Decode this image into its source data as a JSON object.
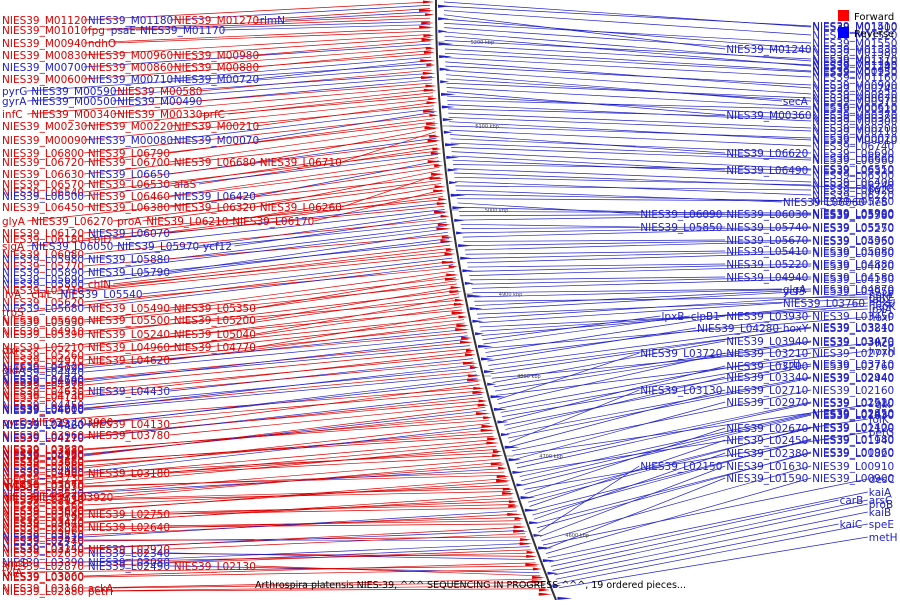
{
  "caption": "Arthrospira platensis NIES-39, ^^^ SEQUENCING IN PROGRESS ^^^, 19 ordered pieces...",
  "legend": [
    {
      "label": "Forward",
      "color": "#ff0000"
    },
    {
      "label": "Reverse",
      "color": "#0000ff"
    }
  ],
  "colors": {
    "forward": "#dd0000",
    "reverse": "#2222cc",
    "backbone": "#333333"
  },
  "ticks": [
    "5200 kbp",
    "5100 kbp",
    "5000 kbp",
    "4900 kbp",
    "4800 kbp",
    "4700 kbp",
    "4600 kbp"
  ],
  "left_labels": [
    [
      "NIES39_M01120",
      "f",
      20
    ],
    [
      "NIES39_M01180",
      "r",
      20
    ],
    [
      "NIES39_M01270",
      "f",
      20
    ],
    [
      "rlmN",
      "r",
      20
    ],
    [
      "NIES39_M01010",
      "f",
      30
    ],
    [
      "fpg",
      "f",
      30
    ],
    [
      "psaE",
      "r",
      30
    ],
    [
      "NIES39_M01170",
      "r",
      30
    ],
    [
      "NIES39_M00940",
      "f",
      43
    ],
    [
      "ndhO",
      "f",
      43
    ],
    [
      "NIES39_M00830",
      "f",
      55
    ],
    [
      "NIES39_M00960",
      "f",
      55
    ],
    [
      "NIES39_M00980",
      "f",
      55
    ],
    [
      "NIES39_M00700",
      "r",
      67
    ],
    [
      "NIES39_M00860",
      "f",
      67
    ],
    [
      "NIES39_M00880",
      "f",
      67
    ],
    [
      "NIES39_M00600",
      "f",
      79
    ],
    [
      "NIES39_M00710",
      "r",
      79
    ],
    [
      "NIES39_M00720",
      "r",
      79
    ],
    [
      "pyrG",
      "r",
      91
    ],
    [
      "NIES39_M00590",
      "r",
      91
    ],
    [
      "NIES39_M00580",
      "f",
      91
    ],
    [
      "gyrA",
      "r",
      101
    ],
    [
      "NIES39_M00500",
      "r",
      101
    ],
    [
      "NIES39_M00490",
      "r",
      101
    ],
    [
      "infC",
      "f",
      114
    ],
    [
      "NIES39_M00340",
      "f",
      114
    ],
    [
      "NIES39_M00330",
      "f",
      114
    ],
    [
      "prfC",
      "f",
      114
    ],
    [
      "NIES39_M00230",
      "f",
      126
    ],
    [
      "NIES39_M00220",
      "f",
      126
    ],
    [
      "NIES39_M00210",
      "f",
      126
    ],
    [
      "NIES39_M00090",
      "f",
      140
    ],
    [
      "NIES39_M00080",
      "r",
      140
    ],
    [
      "NIES39_M00070",
      "r",
      140
    ],
    [
      "NIES39_L06800",
      "f",
      153
    ],
    [
      "NIES39_L06790",
      "f",
      153
    ],
    [
      "NIES39_L06720",
      "f",
      162
    ],
    [
      "NIES39_L06700",
      "f",
      162
    ],
    [
      "NIES39_L06680",
      "f",
      162
    ],
    [
      "NIES39_L06710",
      "f",
      162
    ],
    [
      "NIES39_L06630",
      "f",
      174
    ],
    [
      "NIES39_L06650",
      "r",
      174
    ],
    [
      "NIES39_L06570",
      "f",
      184
    ],
    [
      "NIES39_L06530",
      "f",
      184
    ],
    [
      "alaS",
      "f",
      184
    ],
    [
      "NIES39_L06540",
      "f",
      192
    ],
    [
      "NIES39_L06500",
      "r",
      196
    ],
    [
      "NIES39_L06460",
      "f",
      196
    ],
    [
      "NIES39_L06420",
      "r",
      196
    ],
    [
      "NIES39_L06450",
      "f",
      207
    ],
    [
      "NIES39_L06380",
      "f",
      207
    ],
    [
      "NIES39_L06320",
      "f",
      207
    ],
    [
      "NIES39_L06260",
      "f",
      207
    ],
    [
      "glyA",
      "f",
      221
    ],
    [
      "NIES39_L06270",
      "f",
      221
    ],
    [
      "proA",
      "f",
      221
    ],
    [
      "NIES39_L06210",
      "f",
      221
    ],
    [
      "NIES39_L06170",
      "f",
      221
    ],
    [
      "NIES39_L06180",
      "f",
      239
    ],
    [
      "cbiD",
      "f",
      239
    ],
    [
      "NIES39_L06120",
      "f",
      233
    ],
    [
      "NIES39_L06070",
      "r",
      233
    ],
    [
      "sigA",
      "f",
      246
    ],
    [
      "NIES39_L06050",
      "r",
      246
    ],
    [
      "NIES39_L05970",
      "r",
      246
    ],
    [
      "ycf12",
      "r",
      246
    ],
    [
      "NIES39_L06080",
      "f",
      254
    ],
    [
      "NIES39_L05980",
      "r",
      259
    ],
    [
      "NIES39_L05880",
      "r",
      259
    ],
    [
      "NIES39_L05890",
      "r",
      272
    ],
    [
      "NIES39_L05790",
      "r",
      272
    ],
    [
      "NIES39_L05770",
      "f",
      266
    ],
    [
      "NIES39_L05800",
      "r",
      284
    ],
    [
      "NIES39_L05690",
      "r",
      279
    ],
    [
      "chlN",
      "f",
      284
    ],
    [
      "NIES39_L05710",
      "f",
      290
    ],
    [
      "ilvA",
      "f",
      294
    ],
    [
      "chlL",
      "f",
      294
    ],
    [
      "NIES39_L05540",
      "r",
      294
    ],
    [
      "trpS",
      "f",
      312
    ],
    [
      "NIES39_L05680",
      "r",
      308
    ],
    [
      "NIES39_L05620",
      "f",
      302
    ],
    [
      "NIES39_L05490",
      "f",
      308
    ],
    [
      "NIES39_L05350",
      "f",
      308
    ],
    [
      "NIES39_L05600",
      "f",
      320
    ],
    [
      "NIES39_L05500",
      "f",
      320
    ],
    [
      "NIES39_L05330",
      "f",
      322
    ],
    [
      "NIES39_L05200",
      "f",
      320
    ],
    [
      "NIES39_L05390",
      "f",
      334
    ],
    [
      "NIES39_L05240",
      "f",
      334
    ],
    [
      "NIES39_L05040",
      "f",
      334
    ],
    [
      "NIES39_L04910",
      "f",
      331
    ],
    [
      "NIES39_L05210",
      "f",
      347
    ],
    [
      "NIES39_L04960",
      "f",
      347
    ],
    [
      "dxr",
      "f",
      350
    ],
    [
      "NIES39_L04770",
      "f",
      347
    ],
    [
      "NIES39_L05260",
      "f",
      355
    ],
    [
      "NIES39_L04970",
      "f",
      360
    ],
    [
      "NIES39_L04620",
      "f",
      360
    ],
    [
      "gidA",
      "f",
      370
    ],
    [
      "NIES39_L05090",
      "r",
      368
    ],
    [
      "NIES39_L04720",
      "f",
      366
    ],
    [
      "NIES39_L04440",
      "r",
      372
    ],
    [
      "NIES39_L04900",
      "r",
      382
    ],
    [
      "NIES39_L04740",
      "f",
      379
    ],
    [
      "NIES39_L04590",
      "r",
      380
    ],
    [
      "NIES39_L04310",
      "f",
      385
    ],
    [
      "NIES39_L04730",
      "f",
      395
    ],
    [
      "NIES39_L04630",
      "f",
      391
    ],
    [
      "NIES39_L04430",
      "r",
      391
    ],
    [
      "NIES39_L04140",
      "f",
      397
    ],
    [
      "NIES39_L04600",
      "r",
      409
    ],
    [
      "NIES39_L04450",
      "r",
      405
    ],
    [
      "NIES39_L04260",
      "f",
      408
    ],
    [
      "NIES39_L04010",
      "r",
      410
    ],
    [
      "NIES39_L04460",
      "r",
      425
    ],
    [
      "NIES39_L04320",
      "r",
      424
    ],
    [
      "NIES39_L04130",
      "f",
      424
    ],
    [
      "pyrD",
      "f",
      422
    ],
    [
      "NIES39_L03900",
      "f",
      422
    ],
    [
      "NIES39_L04270",
      "r",
      438
    ],
    [
      "NIES39_L04110",
      "f",
      437
    ],
    [
      "NIES39_L03960",
      "f",
      435
    ],
    [
      "NIES39_L03780",
      "f",
      435
    ],
    [
      "NIES39_L04290",
      "f",
      456
    ],
    [
      "NIES39_L04120",
      "r",
      455
    ],
    [
      "NIES39_L03990",
      "f",
      454
    ],
    [
      "NIES39_L03830",
      "f",
      450
    ],
    [
      "NIES39_L03580",
      "f",
      449
    ],
    [
      "NIES39_L04160",
      "f",
      468
    ],
    [
      "NIES39_L04000",
      "r",
      472
    ],
    [
      "NIES39_L03860",
      "f",
      466
    ],
    [
      "NIES39_L03660",
      "f",
      462
    ],
    [
      "NIES39_L03380",
      "f",
      461
    ],
    [
      "rpsU",
      "f",
      480
    ],
    [
      "hypC",
      "f",
      485
    ],
    [
      "NIES39_L03870",
      "f",
      484
    ],
    [
      "NIES39_L03730",
      "f",
      478
    ],
    [
      "NIES39_L03480",
      "f",
      473
    ],
    [
      "NIES39_L03180",
      "f",
      473
    ],
    [
      "nifJ",
      "f",
      497
    ],
    [
      "NIES39_L03920",
      "f",
      497
    ],
    [
      "NIES39_L03770",
      "f",
      496
    ],
    [
      "NIES39_L03520",
      "r",
      493
    ],
    [
      "NIES39_L03270",
      "f",
      487
    ],
    [
      "NIES39_L03050",
      "f",
      486
    ],
    [
      "NIES39_L03820",
      "f",
      511
    ],
    [
      "NIES39_L03600",
      "f",
      510
    ],
    [
      "NIES39_L03360",
      "f",
      505
    ],
    [
      "NIES39_L03150",
      "f",
      499
    ],
    [
      "NIES39_L02910",
      "f",
      500
    ],
    [
      "NIES39_L03670",
      "f",
      523
    ],
    [
      "NIES39_L03440",
      "f",
      522
    ],
    [
      "NIES39_L03190",
      "f",
      517
    ],
    [
      "NIES39_L03040",
      "f",
      514
    ],
    [
      "NIES39_L02750",
      "f",
      514
    ],
    [
      "NIES39_L03510",
      "r",
      537
    ],
    [
      "NIES39_L03250",
      "f",
      535
    ],
    [
      "NIES39_L03060",
      "f",
      530
    ],
    [
      "NIES39_L02890",
      "f",
      527
    ],
    [
      "NIES39_L02640",
      "f",
      527
    ],
    [
      "NIES39_L03350",
      "f",
      549
    ],
    [
      "NIES39_L03140",
      "r",
      548
    ],
    [
      "NIES39_L02920",
      "f",
      549
    ],
    [
      "NIES39_L02740",
      "f",
      541
    ],
    [
      "NIES39_L02470",
      "r",
      540
    ],
    [
      "NIES39_L03390",
      "r",
      562
    ],
    [
      "NIES39_L03080",
      "r",
      562
    ],
    [
      "NIES39_L02870",
      "f",
      566
    ],
    [
      "smtB",
      "f",
      563
    ],
    [
      "NIES39_L02630",
      "f",
      553
    ],
    [
      "NIES39_L02340",
      "r",
      553
    ],
    [
      "NIES39_L03260",
      "f",
      576
    ],
    [
      "txlA",
      "f",
      572
    ],
    [
      "NIES39_L03000",
      "f",
      577
    ],
    [
      "NIES39_L02490",
      "r",
      566
    ],
    [
      "NIES39_L02130",
      "f",
      566
    ],
    [
      "NIES39_L03160",
      "f",
      588
    ],
    [
      "ackA",
      "f",
      588
    ],
    [
      "NIES39_L02880",
      "f",
      591
    ],
    [
      "petH",
      "f",
      591
    ]
  ],
  "right_labels": [
    [
      "NIES39_M01400",
      "r",
      27
    ],
    [
      "NIES39_M01510",
      "r",
      26
    ],
    [
      "NIES39_M01520",
      "r",
      35
    ],
    [
      "NIES39_M01240",
      "r",
      49
    ],
    [
      "NIES39_M01330",
      "r",
      49
    ],
    [
      "NIES39_M01550",
      "r",
      43
    ],
    [
      "NIES39_M01580",
      "r",
      52
    ],
    [
      "NIES39_M01110",
      "r",
      61
    ],
    [
      "NIES39_M01140",
      "r",
      66
    ],
    [
      "NIES39_M01370",
      "r",
      59
    ],
    [
      "NIES39_M01390",
      "r",
      65
    ],
    [
      "NIES39_M00930",
      "r",
      71
    ],
    [
      "NIES39_M01150",
      "r",
      72
    ],
    [
      "NIES39_M01160",
      "r",
      77
    ],
    [
      "NIES39_M00740",
      "r",
      88
    ],
    [
      "NIES39_M00900",
      "r",
      85
    ],
    [
      "NIES39_M00820",
      "r",
      94
    ],
    [
      "secA",
      "r",
      101
    ],
    [
      "NIES39_M00570",
      "r",
      101
    ],
    [
      "NIES39_M00670",
      "r",
      98
    ],
    [
      "NIES39_M00610",
      "r",
      107
    ],
    [
      "NIES39_M00360",
      "r",
      115
    ],
    [
      "NIES39_M00370",
      "r",
      115
    ],
    [
      "NIES39_M00520",
      "r",
      109
    ],
    [
      "NIES39_M00300",
      "r",
      121
    ],
    [
      "NIES39_M00380",
      "r",
      118
    ],
    [
      "NIES39_M00200",
      "r",
      128
    ],
    [
      "NIES39_M00110",
      "r",
      131
    ],
    [
      "NIES39_M00010",
      "r",
      140
    ],
    [
      "NIES39_M00020",
      "r",
      138
    ],
    [
      "NIES39_L06740",
      "r",
      146
    ],
    [
      "NIES39_L06620",
      "r",
      153
    ],
    [
      "NIES39_L06690",
      "r",
      153
    ],
    [
      "NIES39_L06660",
      "r",
      158
    ],
    [
      "NIES39_L06560",
      "r",
      160
    ],
    [
      "NIES39_L06550",
      "r",
      169
    ],
    [
      "NIES39_L06490",
      "r",
      170
    ],
    [
      "NIES39_L06300",
      "r",
      175
    ],
    [
      "NIES39_L06310",
      "r",
      170
    ],
    [
      "NIES39_L06400",
      "r",
      182
    ],
    [
      "pyrC",
      "r",
      188
    ],
    [
      "NIES39_L06240",
      "r",
      185
    ],
    [
      "NIES39_L06220",
      "r",
      195
    ],
    [
      "NIES39_L06020",
      "r",
      190
    ],
    [
      "NIES39_L06060",
      "r",
      202
    ],
    [
      "ileS",
      "r",
      202
    ],
    [
      "NIES39_L05780",
      "r",
      201
    ],
    [
      "NIES39_L06090",
      "r",
      214
    ],
    [
      "NIES39_L06030",
      "r",
      214
    ],
    [
      "NIES39_L05900",
      "r",
      213
    ],
    [
      "NIES39_L05760",
      "r",
      214
    ],
    [
      "NIES39_L05580",
      "r",
      215
    ],
    [
      "NIES39_L05850",
      "r",
      227
    ],
    [
      "NIES39_L05740",
      "r",
      227
    ],
    [
      "NIES39_L05570",
      "r",
      227
    ],
    [
      "NIES39_L05250",
      "r",
      228
    ],
    [
      "NIES39_L05670",
      "r",
      240
    ],
    [
      "NIES39_L05360",
      "r",
      240
    ],
    [
      "NIES39_L04950",
      "r",
      241
    ],
    [
      "NIES39_L05410",
      "r",
      251
    ],
    [
      "NIES39_L05080",
      "r",
      251
    ],
    [
      "NIES39_L04650",
      "r",
      253
    ],
    [
      "NIES39_L05220",
      "r",
      264
    ],
    [
      "NIES39_L04880",
      "r",
      264
    ],
    [
      "NIES39_L04420",
      "r",
      266
    ],
    [
      "NIES39_L04940",
      "r",
      277
    ],
    [
      "NIES39_L04580",
      "r",
      277
    ],
    [
      "NIES39_L04150",
      "r",
      279
    ],
    [
      "glgA",
      "r",
      289
    ],
    [
      "NIES39_L04870",
      "r",
      289
    ],
    [
      "gatC",
      "r",
      297
    ],
    [
      "ycf3",
      "r",
      291
    ],
    [
      "NIES39_L03950",
      "r",
      291
    ],
    [
      "fabZ",
      "r",
      299
    ],
    [
      "hoxE",
      "r",
      294
    ],
    [
      "NIES39_L03760",
      "r",
      303
    ],
    [
      "lpxA",
      "r",
      309
    ],
    [
      "hepK",
      "r",
      306
    ],
    [
      "hoxU",
      "r",
      303
    ],
    [
      "lpxB",
      "r",
      316
    ],
    [
      "clpB1",
      "r",
      316
    ],
    [
      "hoxF",
      "r",
      317
    ],
    [
      "NIES39_L03930",
      "r",
      316
    ],
    [
      "NIES39_L03450",
      "r",
      316
    ],
    [
      "NIES39_L04280",
      "r",
      328
    ],
    [
      "hoxY",
      "r",
      328
    ],
    [
      "NIES39_L03810",
      "r",
      328
    ],
    [
      "NIES39_L03240",
      "r",
      327
    ],
    [
      "hcp",
      "r",
      343
    ],
    [
      "NIES39_L03940",
      "r",
      341
    ],
    [
      "NIES39_L03470",
      "r",
      341
    ],
    [
      "NIES39_L03020",
      "r",
      342
    ],
    [
      "hoxH",
      "r",
      351
    ],
    [
      "NIES39_L03720",
      "r",
      353
    ],
    [
      "NIES39_L03210",
      "r",
      353
    ],
    [
      "NIES39_L02770",
      "r",
      353
    ],
    [
      "crtI",
      "r",
      364
    ],
    [
      "NIES39_L03710",
      "r",
      364
    ],
    [
      "NIES39_L03200",
      "r",
      366
    ],
    [
      "NIES39_L02760",
      "r",
      366
    ],
    [
      "NIES39_L03340",
      "r",
      377
    ],
    [
      "NIES39_L02940",
      "r",
      377
    ],
    [
      "NIES39_L02440",
      "r",
      378
    ],
    [
      "NIES39_L03130",
      "r",
      390
    ],
    [
      "NIES39_L02710",
      "r",
      390
    ],
    [
      "NIES39_L02160",
      "r",
      390
    ],
    [
      "glk",
      "r",
      404
    ],
    [
      "NIES39_L02970",
      "r",
      402
    ],
    [
      "NIES39_L02520",
      "r",
      402
    ],
    [
      "NIES39_L01910",
      "r",
      403
    ],
    [
      "folK",
      "r",
      419
    ],
    [
      "NIES39_L02850",
      "r",
      413
    ],
    [
      "NIES39_L02430",
      "r",
      414
    ],
    [
      "NIES39_L01830",
      "r",
      415
    ],
    [
      "petG",
      "r",
      432
    ],
    [
      "NIES39_L02670",
      "r",
      428
    ],
    [
      "NIES39_L02120",
      "r",
      428
    ],
    [
      "NIES39_L01400",
      "r",
      427
    ],
    [
      "NIES39_L02450",
      "r",
      440
    ],
    [
      "NIES39_L01940",
      "r",
      440
    ],
    [
      "NIES39_L01180",
      "r",
      439
    ],
    [
      "NIES39_L02380",
      "r",
      453
    ],
    [
      "NIES39_L01820",
      "r",
      453
    ],
    [
      "NIES39_L00960",
      "r",
      452
    ],
    [
      "NIES39_L02150",
      "r",
      466
    ],
    [
      "NIES39_L01630",
      "r",
      466
    ],
    [
      "NIES39_L00910",
      "r",
      466
    ],
    [
      "desC",
      "r",
      479
    ],
    [
      "NIES39_L01590",
      "r",
      478
    ],
    [
      "NIES39_L00900",
      "r",
      478
    ],
    [
      "kaiA",
      "r",
      492
    ],
    [
      "carB",
      "r",
      500
    ],
    [
      "arsC",
      "r",
      500
    ],
    [
      "proB",
      "r",
      504
    ],
    [
      "kaiB",
      "r",
      512
    ],
    [
      "kaiC",
      "r",
      524
    ],
    [
      "speE",
      "r",
      524
    ],
    [
      "metH",
      "r",
      537
    ]
  ]
}
